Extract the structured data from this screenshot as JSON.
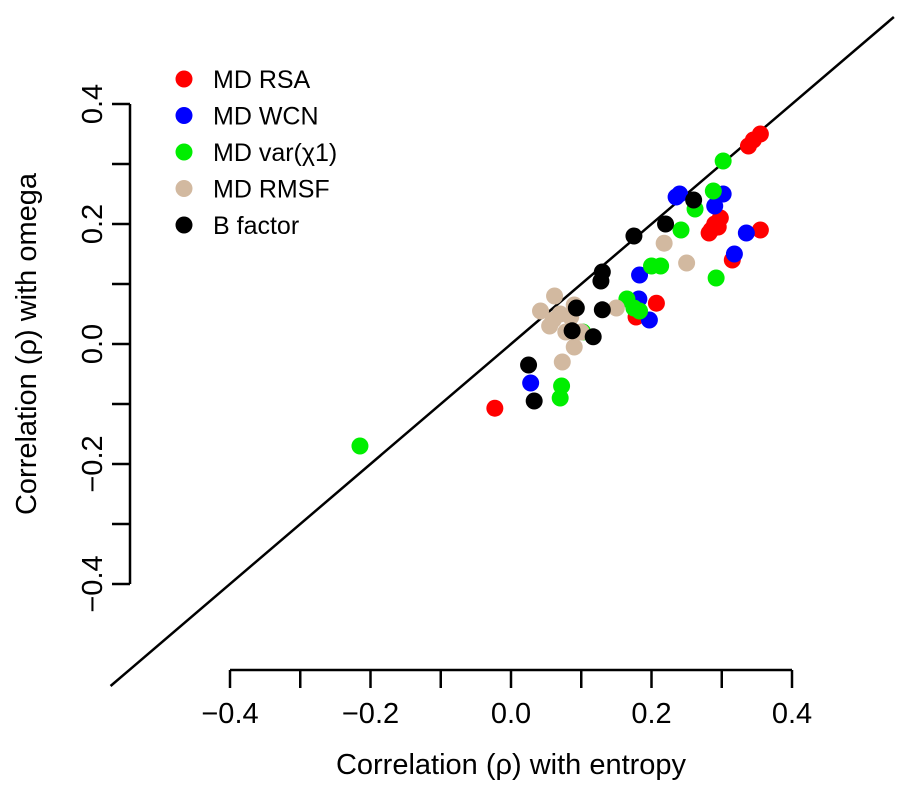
{
  "chart_data": {
    "type": "scatter",
    "xlabel": "Correlation (ρ) with entropy",
    "ylabel": "Correlation (ρ) with omega",
    "xlim": [
      -0.4,
      0.4
    ],
    "ylim": [
      -0.4,
      0.4
    ],
    "x_ticks": [
      -0.4,
      -0.3,
      -0.2,
      -0.1,
      0.0,
      0.1,
      0.2,
      0.3,
      0.4
    ],
    "x_tick_labels": [
      "−0.4",
      "",
      "−0.2",
      "",
      "0.0",
      "",
      "0.2",
      "",
      "0.4"
    ],
    "y_ticks": [
      -0.4,
      -0.3,
      -0.2,
      -0.1,
      0.0,
      0.1,
      0.2,
      0.3,
      0.4
    ],
    "y_tick_labels": [
      "−0.4",
      "",
      "−0.2",
      "",
      "0.0",
      "",
      "0.2",
      "",
      "0.4"
    ],
    "reference_line": "y = x",
    "grid": false,
    "legend_position": "top-left",
    "series": [
      {
        "name": "MD RSA",
        "color": "#ff0000",
        "points": [
          [
            0.355,
            0.35
          ],
          [
            0.345,
            0.34
          ],
          [
            0.338,
            0.33
          ],
          [
            0.355,
            0.19
          ],
          [
            0.315,
            0.14
          ],
          [
            0.298,
            0.21
          ],
          [
            0.29,
            0.2
          ],
          [
            0.282,
            0.185
          ],
          [
            0.285,
            0.19
          ],
          [
            0.295,
            0.195
          ],
          [
            0.207,
            0.068
          ],
          [
            0.178,
            0.045
          ],
          [
            -0.023,
            -0.107
          ]
        ]
      },
      {
        "name": "MD WCN",
        "color": "#0000ff",
        "points": [
          [
            0.24,
            0.25
          ],
          [
            0.235,
            0.245
          ],
          [
            0.302,
            0.25
          ],
          [
            0.29,
            0.23
          ],
          [
            0.335,
            0.185
          ],
          [
            0.318,
            0.15
          ],
          [
            0.183,
            0.115
          ],
          [
            0.182,
            0.075
          ],
          [
            0.197,
            0.04
          ],
          [
            0.028,
            -0.065
          ]
        ]
      },
      {
        "name": "MD var(χ1)",
        "color": "#00ee00",
        "points": [
          [
            0.302,
            0.305
          ],
          [
            0.288,
            0.255
          ],
          [
            0.262,
            0.225
          ],
          [
            0.242,
            0.19
          ],
          [
            0.292,
            0.11
          ],
          [
            0.213,
            0.13
          ],
          [
            0.2,
            0.13
          ],
          [
            0.165,
            0.075
          ],
          [
            0.175,
            0.06
          ],
          [
            0.183,
            0.055
          ],
          [
            0.102,
            0.02
          ],
          [
            0.072,
            -0.07
          ],
          [
            0.07,
            -0.09
          ],
          [
            -0.215,
            -0.17
          ]
        ]
      },
      {
        "name": "MD RMSF",
        "color": "#d2b9a0",
        "points": [
          [
            0.218,
            0.168
          ],
          [
            0.25,
            0.135
          ],
          [
            0.15,
            0.06
          ],
          [
            0.042,
            0.055
          ],
          [
            0.062,
            0.08
          ],
          [
            0.09,
            0.065
          ],
          [
            0.07,
            0.05
          ],
          [
            0.055,
            0.03
          ],
          [
            0.078,
            0.02
          ],
          [
            0.09,
            -0.005
          ],
          [
            0.073,
            -0.03
          ],
          [
            0.06,
            0.04
          ],
          [
            0.085,
            0.045
          ],
          [
            0.1,
            0.02
          ]
        ]
      },
      {
        "name": "B factor",
        "color": "#000000",
        "points": [
          [
            0.26,
            0.24
          ],
          [
            0.22,
            0.2
          ],
          [
            0.175,
            0.18
          ],
          [
            0.13,
            0.12
          ],
          [
            0.128,
            0.105
          ],
          [
            0.13,
            0.057
          ],
          [
            0.093,
            0.06
          ],
          [
            0.087,
            0.022
          ],
          [
            0.117,
            0.012
          ],
          [
            0.025,
            -0.035
          ],
          [
            0.033,
            -0.095
          ]
        ]
      }
    ]
  }
}
